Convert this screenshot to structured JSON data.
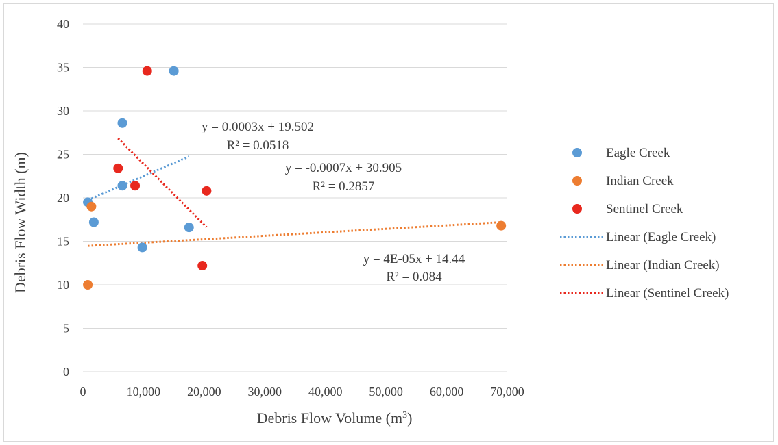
{
  "chart_data": {
    "type": "scatter",
    "xlabel": "Debris Flow Volume (m",
    "xlabel_sup": "3",
    "xlabel_close": ")",
    "ylabel": "Debris Flow Width (m)",
    "xlim": [
      0,
      70000
    ],
    "ylim": [
      0,
      40
    ],
    "xticks": [
      0,
      10000,
      20000,
      30000,
      40000,
      50000,
      60000,
      70000
    ],
    "xtick_labels": [
      "0",
      "10,000",
      "20,000",
      "30,000",
      "40,000",
      "50,000",
      "60,000",
      "70,000"
    ],
    "yticks": [
      0,
      5,
      10,
      15,
      20,
      25,
      30,
      35,
      40
    ],
    "ytick_labels": [
      "0",
      "5",
      "10",
      "15",
      "20",
      "25",
      "30",
      "35",
      "40"
    ],
    "grid": "horizontal",
    "legend_position": "right",
    "series": [
      {
        "name": "Eagle Creek",
        "color": "#5B9BD5",
        "points": [
          [
            800,
            19.5
          ],
          [
            1800,
            17.2
          ],
          [
            6500,
            28.6
          ],
          [
            6500,
            21.4
          ],
          [
            9800,
            14.3
          ],
          [
            15000,
            34.6
          ],
          [
            17500,
            16.6
          ]
        ]
      },
      {
        "name": "Indian Creek",
        "color": "#ED7D31",
        "points": [
          [
            1400,
            19.0
          ],
          [
            800,
            10.0
          ],
          [
            69000,
            16.8
          ]
        ]
      },
      {
        "name": "Sentinel Creek",
        "color": "#E8281E",
        "points": [
          [
            10600,
            34.6
          ],
          [
            5800,
            23.4
          ],
          [
            8600,
            21.4
          ],
          [
            20400,
            20.8
          ],
          [
            19700,
            12.2
          ]
        ]
      }
    ],
    "trendlines": [
      {
        "name": "Linear (Eagle Creek)",
        "color": "#5B9BD5",
        "slope": 0.0003,
        "intercept": 19.502,
        "x_range": [
          800,
          17500
        ],
        "equation": "y = 0.0003x + 19.502",
        "r2": "R² = 0.0518"
      },
      {
        "name": "Linear (Indian Creek)",
        "color": "#ED7D31",
        "slope": 4e-05,
        "intercept": 14.44,
        "x_range": [
          800,
          69000
        ],
        "equation": "y = 4E-05x + 14.44",
        "r2": "R² = 0.084"
      },
      {
        "name": "Linear (Sentinel Creek)",
        "color": "#E8281E",
        "slope": -0.0007,
        "intercept": 30.905,
        "x_range": [
          5800,
          20400
        ],
        "equation": "y = -0.0007x + 30.905",
        "r2": "R² = 0.2857"
      }
    ]
  }
}
